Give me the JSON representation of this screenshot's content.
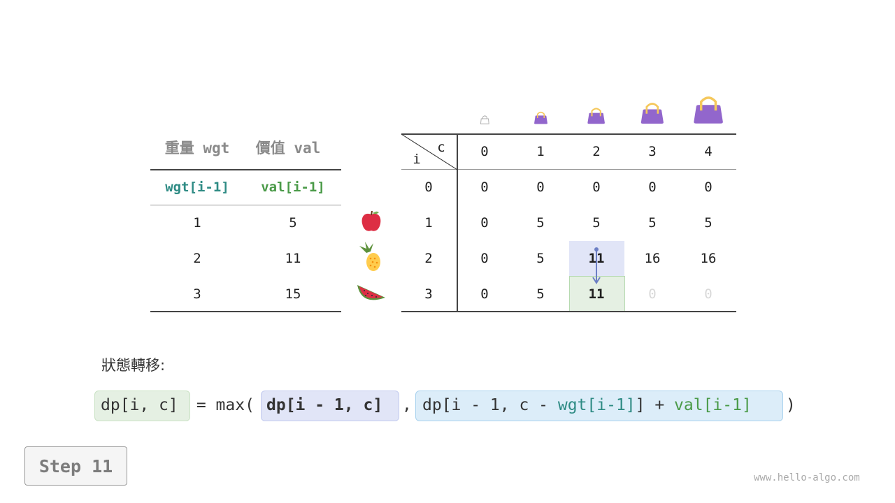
{
  "items_table": {
    "headers": [
      "重量 wgt",
      "價值 val"
    ],
    "subheaders": [
      "wgt[i-1]",
      "val[i-1]"
    ],
    "rows": [
      [
        "1",
        "5"
      ],
      [
        "2",
        "11"
      ],
      [
        "3",
        "15"
      ]
    ],
    "item_icons": [
      "apple-icon",
      "pineapple-icon",
      "watermelon-icon"
    ]
  },
  "dp_table": {
    "corner_row_label": "i",
    "corner_col_label": "c",
    "col_headers": [
      "0",
      "1",
      "2",
      "3",
      "4"
    ],
    "row_headers": [
      "0",
      "1",
      "2",
      "3"
    ],
    "cells": [
      [
        "0",
        "0",
        "0",
        "0",
        "0"
      ],
      [
        "0",
        "5",
        "5",
        "5",
        "5"
      ],
      [
        "0",
        "5",
        "11",
        "16",
        "16"
      ],
      [
        "0",
        "5",
        "11",
        "0",
        "0"
      ]
    ],
    "capacity_icons": [
      "bag-icon",
      "bag-icon",
      "bag-icon",
      "bag-icon",
      "bag-icon"
    ],
    "highlight_source": {
      "row": 2,
      "col": 2,
      "color": "#e1e5f7"
    },
    "highlight_target": {
      "row": 3,
      "col": 2,
      "color": "#e5f0e3"
    }
  },
  "formula": {
    "label": "狀態轉移:",
    "lhs": "dp[i, c]",
    "eq": " = max(",
    "term1": "dp[i - 1, c]",
    "comma": ",",
    "term2_a": "dp[i - 1, c - ",
    "term2_wgt": "wgt[i-1]",
    "term2_b": "] + ",
    "term2_val": "val[i-1]",
    "close": ")"
  },
  "step_label": "Step 11",
  "watermark": "www.hello-algo.com"
}
